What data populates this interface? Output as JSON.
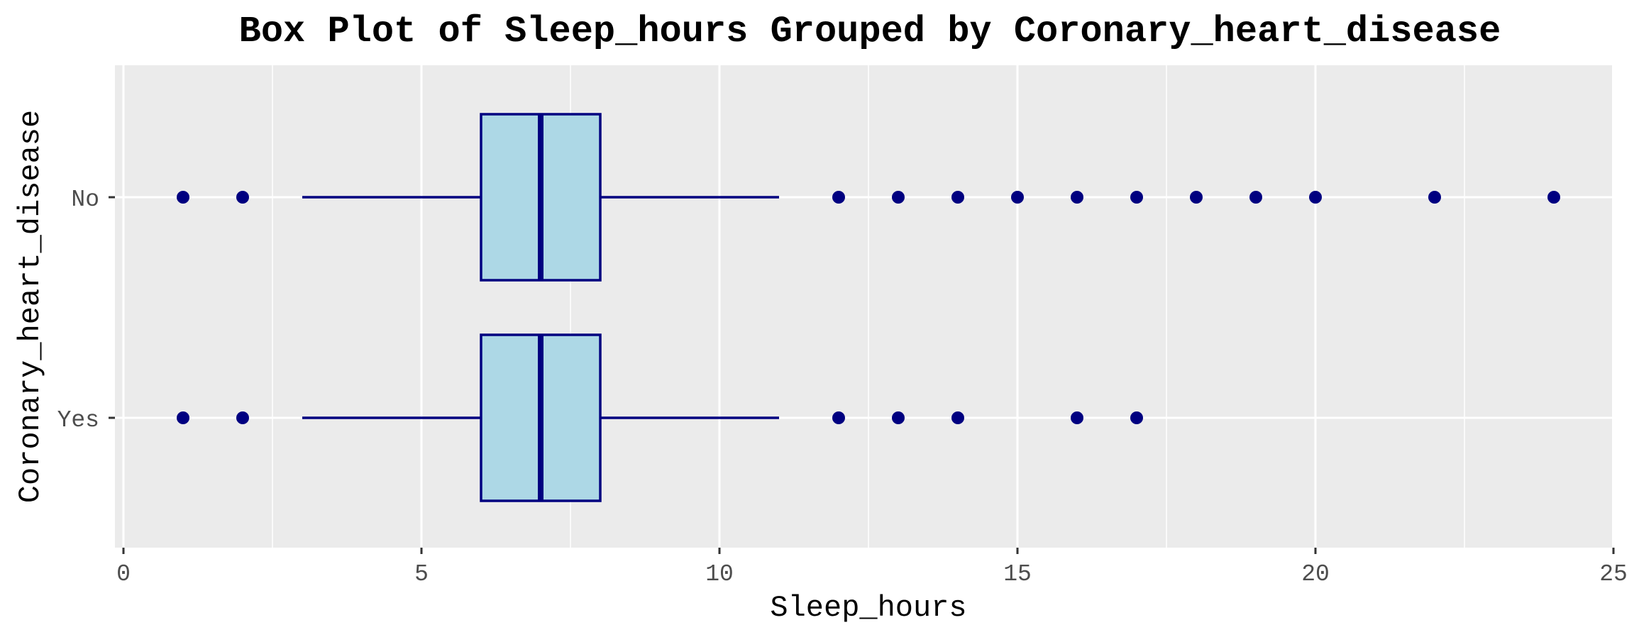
{
  "chart_data": {
    "type": "box",
    "title": "Box Plot of Sleep_hours Grouped by Coronary_heart_disease",
    "xlabel": "Sleep_hours",
    "ylabel": "Coronary_heart_disease",
    "xlim": [
      -0.3,
      25.1
    ],
    "xticks": [
      0,
      5,
      10,
      15,
      20,
      25
    ],
    "xtick_labels": [
      "0",
      "5",
      "10",
      "15",
      "20",
      "25"
    ],
    "categories": [
      "No",
      "Yes"
    ],
    "groups": [
      {
        "category": "No",
        "whisker_low": 3,
        "q1": 6,
        "median": 7,
        "q3": 8,
        "whisker_high": 11,
        "outliers": [
          1,
          2,
          12,
          13,
          14,
          15,
          16,
          17,
          18,
          19,
          20,
          22,
          24
        ]
      },
      {
        "category": "Yes",
        "whisker_low": 3,
        "q1": 6,
        "median": 7,
        "q3": 8,
        "whisker_high": 11,
        "outliers": [
          1,
          2,
          12,
          13,
          14,
          16,
          17
        ]
      }
    ],
    "grid": true,
    "colors": {
      "panel_background": "#ebebeb",
      "grid": "#ffffff",
      "box_fill": "#add8e6",
      "box_line": "#000080",
      "outlier": "#000080"
    }
  }
}
